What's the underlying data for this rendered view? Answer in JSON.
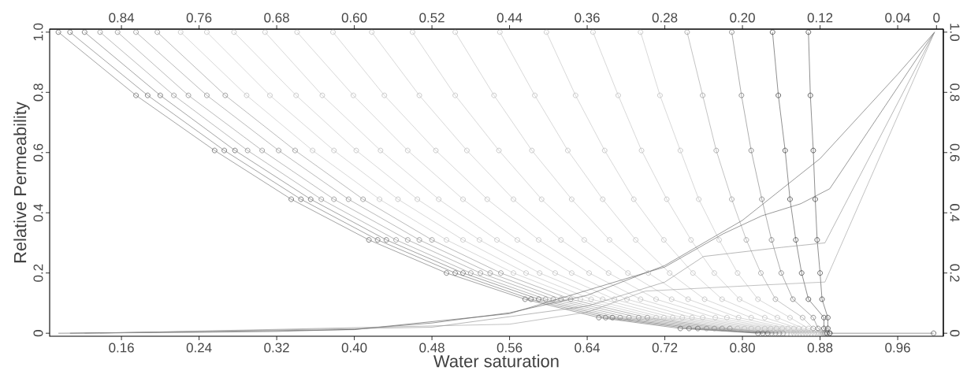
{
  "chart_data": {
    "type": "line",
    "xlabel": "Water saturation",
    "ylabel": "Relative Permeability",
    "marker": "circle",
    "xlim": [
      0.086,
      1.007
    ],
    "ylim": [
      -0.01,
      1.01
    ],
    "x2lim": [
      0.914,
      -0.007
    ],
    "y2lim": [
      -0.01,
      1.01
    ],
    "xticks": [
      0.16,
      0.24,
      0.32,
      {
        "value": 0.4,
        "label": "0.40"
      },
      0.48,
      0.56,
      0.64,
      0.72,
      {
        "value": 0.8,
        "label": "0.80"
      },
      0.88,
      0.96
    ],
    "x2ticks": [
      0.84,
      0.76,
      0.68,
      {
        "value": 0.6,
        "label": "0.60"
      },
      0.52,
      0.44,
      0.36,
      0.28,
      {
        "value": 0.2,
        "label": "0.20"
      },
      0.12,
      0.04,
      0
    ],
    "yticks": [
      0,
      0.2,
      0.4,
      0.6,
      0.8,
      {
        "value": 1,
        "label": "1.0"
      }
    ],
    "y2ticks": [
      0,
      0.2,
      0.4,
      0.6,
      0.8,
      {
        "value": 1,
        "label": "1.0"
      }
    ],
    "series": [
      {
        "color": "#666666",
        "x": [
          0.095,
          0.175,
          0.256,
          0.335,
          0.415,
          0.495,
          0.576,
          0.652,
          0.736,
          0.816
        ],
        "values": [
          1,
          0.79,
          0.607,
          0.445,
          0.31,
          0.2,
          0.113,
          0.052,
          0.016,
          0
        ]
      },
      {
        "color": "#666666",
        "x": [
          0.107,
          0.187,
          0.266,
          0.345,
          0.424,
          0.504,
          0.582,
          0.659,
          0.745,
          0.821
        ],
        "values": [
          1,
          0.79,
          0.607,
          0.445,
          0.31,
          0.2,
          0.113,
          0.052,
          0.016,
          0
        ]
      },
      {
        "color": "#666666",
        "x": [
          0.122,
          0.2,
          0.277,
          0.355,
          0.433,
          0.512,
          0.59,
          0.666,
          0.754,
          0.826
        ],
        "values": [
          1,
          0.79,
          0.607,
          0.445,
          0.31,
          0.2,
          0.113,
          0.052,
          0.016,
          0
        ]
      },
      {
        "color": "#8c8c8c",
        "x": [
          0.138,
          0.214,
          0.29,
          0.366,
          0.443,
          0.52,
          0.597,
          0.674,
          0.763,
          0.83
        ],
        "values": [
          1,
          0.79,
          0.607,
          0.445,
          0.31,
          0.2,
          0.113,
          0.052,
          0.016,
          0
        ]
      },
      {
        "color": "#8c8c8c",
        "x": [
          0.156,
          0.229,
          0.305,
          0.379,
          0.455,
          0.53,
          0.605,
          0.683,
          0.771,
          0.834
        ],
        "values": [
          1,
          0.79,
          0.607,
          0.445,
          0.31,
          0.2,
          0.113,
          0.052,
          0.016,
          0
        ]
      },
      {
        "color": "#8c8c8c",
        "x": [
          0.175,
          0.248,
          0.322,
          0.394,
          0.467,
          0.54,
          0.613,
          0.693,
          0.779,
          0.838
        ],
        "values": [
          1,
          0.79,
          0.607,
          0.445,
          0.31,
          0.2,
          0.113,
          0.052,
          0.016,
          0
        ]
      },
      {
        "color": "#8c8c8c",
        "x": [
          0.197,
          0.267,
          0.339,
          0.409,
          0.48,
          0.551,
          0.623,
          0.702,
          0.787,
          0.842
        ],
        "values": [
          1,
          0.79,
          0.607,
          0.445,
          0.31,
          0.2,
          0.113,
          0.052,
          0.016,
          0
        ]
      },
      {
        "color": "#bdbdbd",
        "x": [
          0.221,
          0.289,
          0.357,
          0.426,
          0.495,
          0.564,
          0.633,
          0.711,
          0.795,
          0.846
        ],
        "values": [
          1,
          0.79,
          0.607,
          0.445,
          0.31,
          0.2,
          0.113,
          0.052,
          0.016,
          0
        ]
      },
      {
        "color": "#bdbdbd",
        "x": [
          0.248,
          0.313,
          0.379,
          0.445,
          0.512,
          0.577,
          0.644,
          0.719,
          0.802,
          0.85
        ],
        "values": [
          1,
          0.79,
          0.607,
          0.445,
          0.31,
          0.2,
          0.113,
          0.052,
          0.016,
          0
        ]
      },
      {
        "color": "#bdbdbd",
        "x": [
          0.276,
          0.34,
          0.402,
          0.465,
          0.529,
          0.591,
          0.656,
          0.728,
          0.809,
          0.853
        ],
        "values": [
          1,
          0.79,
          0.607,
          0.445,
          0.31,
          0.2,
          0.113,
          0.052,
          0.016,
          0
        ]
      },
      {
        "color": "#bdbdbd",
        "x": [
          0.308,
          0.367,
          0.427,
          0.487,
          0.547,
          0.607,
          0.668,
          0.738,
          0.816,
          0.856
        ],
        "values": [
          1,
          0.79,
          0.607,
          0.445,
          0.31,
          0.2,
          0.113,
          0.052,
          0.016,
          0
        ]
      },
      {
        "color": "#bdbdbd",
        "x": [
          0.341,
          0.399,
          0.455,
          0.512,
          0.568,
          0.624,
          0.681,
          0.748,
          0.823,
          0.859
        ],
        "values": [
          1,
          0.79,
          0.607,
          0.445,
          0.31,
          0.2,
          0.113,
          0.052,
          0.016,
          0
        ]
      },
      {
        "color": "#bdbdbd",
        "x": [
          0.378,
          0.431,
          0.484,
          0.537,
          0.59,
          0.642,
          0.695,
          0.759,
          0.829,
          0.862
        ],
        "values": [
          1,
          0.79,
          0.607,
          0.445,
          0.31,
          0.2,
          0.113,
          0.052,
          0.016,
          0
        ]
      },
      {
        "color": "#bdbdbd",
        "x": [
          0.418,
          0.467,
          0.516,
          0.564,
          0.613,
          0.662,
          0.711,
          0.772,
          0.835,
          0.865
        ],
        "values": [
          1,
          0.79,
          0.607,
          0.445,
          0.31,
          0.2,
          0.113,
          0.052,
          0.016,
          0
        ]
      },
      {
        "color": "#bdbdbd",
        "x": [
          0.46,
          0.504,
          0.549,
          0.593,
          0.637,
          0.682,
          0.727,
          0.784,
          0.841,
          0.868
        ],
        "values": [
          1,
          0.79,
          0.607,
          0.445,
          0.31,
          0.2,
          0.113,
          0.052,
          0.016,
          0
        ]
      },
      {
        "color": "#bdbdbd",
        "x": [
          0.504,
          0.544,
          0.583,
          0.624,
          0.663,
          0.703,
          0.744,
          0.796,
          0.847,
          0.871
        ],
        "values": [
          1,
          0.79,
          0.607,
          0.445,
          0.31,
          0.2,
          0.113,
          0.052,
          0.016,
          0
        ]
      },
      {
        "color": "#bdbdbd",
        "x": [
          0.55,
          0.586,
          0.62,
          0.656,
          0.69,
          0.725,
          0.761,
          0.809,
          0.853,
          0.874
        ],
        "values": [
          1,
          0.79,
          0.607,
          0.445,
          0.31,
          0.2,
          0.113,
          0.052,
          0.016,
          0
        ]
      },
      {
        "color": "#bdbdbd",
        "x": [
          0.598,
          0.628,
          0.658,
          0.688,
          0.719,
          0.749,
          0.779,
          0.823,
          0.858,
          0.877
        ],
        "values": [
          1,
          0.79,
          0.607,
          0.445,
          0.31,
          0.2,
          0.113,
          0.052,
          0.016,
          0
        ]
      },
      {
        "color": "#bdbdbd",
        "x": [
          0.646,
          0.672,
          0.696,
          0.722,
          0.747,
          0.771,
          0.797,
          0.836,
          0.863,
          0.879
        ],
        "values": [
          1,
          0.79,
          0.607,
          0.445,
          0.31,
          0.2,
          0.113,
          0.052,
          0.016,
          0
        ]
      },
      {
        "color": "#bdbdbd",
        "x": [
          0.695,
          0.715,
          0.736,
          0.755,
          0.776,
          0.795,
          0.816,
          0.849,
          0.868,
          0.881
        ],
        "values": [
          1,
          0.79,
          0.607,
          0.445,
          0.31,
          0.2,
          0.113,
          0.052,
          0.016,
          0
        ]
      },
      {
        "color": "#9a9a9a",
        "x": [
          0.743,
          0.759,
          0.773,
          0.789,
          0.804,
          0.819,
          0.834,
          0.862,
          0.873,
          0.883
        ],
        "values": [
          1,
          0.79,
          0.607,
          0.445,
          0.31,
          0.2,
          0.113,
          0.052,
          0.016,
          0
        ]
      },
      {
        "color": "#777777",
        "x": [
          0.789,
          0.799,
          0.809,
          0.82,
          0.83,
          0.84,
          0.852,
          0.873,
          0.878,
          0.885
        ],
        "values": [
          1,
          0.79,
          0.607,
          0.445,
          0.31,
          0.2,
          0.113,
          0.052,
          0.016,
          0
        ]
      },
      {
        "color": "#444444",
        "x": [
          0.831,
          0.837,
          0.844,
          0.849,
          0.855,
          0.861,
          0.868,
          0.884,
          0.884,
          0.887
        ],
        "values": [
          1,
          0.79,
          0.607,
          0.445,
          0.31,
          0.2,
          0.113,
          0.052,
          0.016,
          0
        ]
      },
      {
        "color": "#444444",
        "x": [
          0.868,
          0.87,
          0.873,
          0.875,
          0.877,
          0.88,
          0.882,
          0.888,
          0.888,
          0.89
        ],
        "values": [
          1,
          0.79,
          0.607,
          0.445,
          0.31,
          0.2,
          0.113,
          0.052,
          0.016,
          0
        ]
      },
      {
        "color": "#555555",
        "marker": "none",
        "x": [
          0.095,
          0.24,
          0.32,
          0.4,
          0.48,
          0.56,
          0.64,
          0.72,
          0.8,
          0.88,
          0.96,
          0.998
        ],
        "values": [
          0,
          0.003,
          0.006,
          0.013,
          0.034,
          0.068,
          0.126,
          0.225,
          0.375,
          0.58,
          0.86,
          1
        ]
      },
      {
        "color": "#555555",
        "marker": "none",
        "x": [
          0.107,
          0.4,
          0.56,
          0.72,
          0.78,
          0.82,
          0.86,
          0.89,
          0.998
        ],
        "values": [
          0,
          0.012,
          0.065,
          0.22,
          0.33,
          0.39,
          0.43,
          0.48,
          1
        ]
      },
      {
        "color": "#888888",
        "marker": "none",
        "x": [
          0.122,
          0.48,
          0.64,
          0.72,
          0.76,
          0.8,
          0.84,
          0.885,
          0.998
        ],
        "values": [
          0,
          0.02,
          0.09,
          0.17,
          0.255,
          0.27,
          0.285,
          0.3,
          1
        ]
      },
      {
        "color": "#999999",
        "marker": "none",
        "x": [
          0.138,
          0.56,
          0.64,
          0.7,
          0.76,
          0.82,
          0.885,
          0.998
        ],
        "values": [
          0,
          0.03,
          0.07,
          0.14,
          0.15,
          0.16,
          0.17,
          1
        ]
      },
      {
        "color": "#555555",
        "x": [
          0.89,
          0.997
        ],
        "values": [
          0,
          0
        ]
      }
    ]
  }
}
